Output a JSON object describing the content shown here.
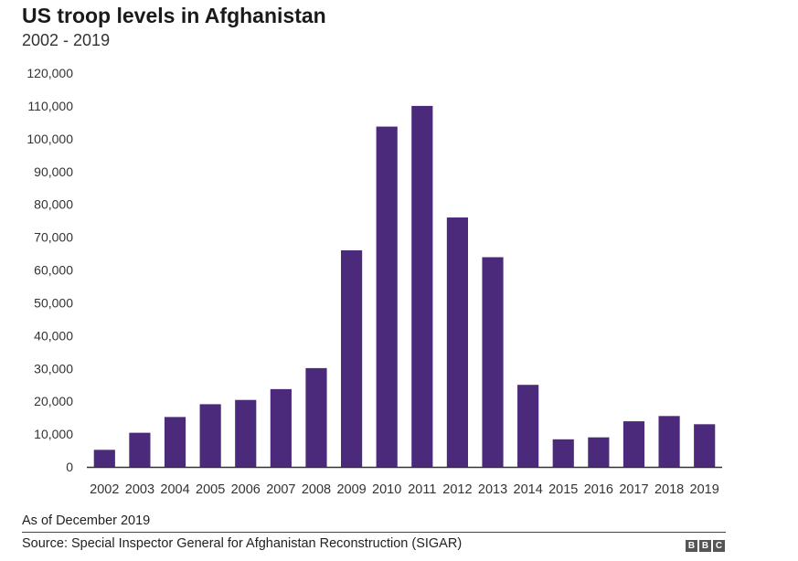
{
  "header": {
    "title": "US troop levels in Afghanistan",
    "subtitle": "2002 - 2019"
  },
  "footer": {
    "note": "As of December 2019",
    "source": "Source: Special Inspector General for Afghanistan Reconstruction (SIGAR)",
    "logo": [
      "B",
      "B",
      "C"
    ]
  },
  "colors": {
    "bar": "#4b2a7b",
    "axis": "#333333"
  },
  "chart_data": {
    "type": "bar",
    "title": "US troop levels in Afghanistan",
    "subtitle": "2002 - 2019",
    "categories": [
      "2002",
      "2003",
      "2004",
      "2005",
      "2006",
      "2007",
      "2008",
      "2009",
      "2010",
      "2011",
      "2012",
      "2013",
      "2014",
      "2015",
      "2016",
      "2017",
      "2018",
      "2019"
    ],
    "values": [
      5200,
      10400,
      15200,
      19100,
      20400,
      23700,
      30100,
      66000,
      103700,
      110000,
      76000,
      63900,
      25000,
      8400,
      9000,
      13900,
      15500,
      13000
    ],
    "ylim": [
      0,
      120000
    ],
    "yticks": [
      0,
      10000,
      20000,
      30000,
      40000,
      50000,
      60000,
      70000,
      80000,
      90000,
      100000,
      110000,
      120000
    ],
    "ytick_labels": [
      "0",
      "10,000",
      "20,000",
      "30,000",
      "40,000",
      "50,000",
      "60,000",
      "70,000",
      "80,000",
      "90,000",
      "100,000",
      "110,000",
      "120,000"
    ],
    "xlabel": "",
    "ylabel": "",
    "grid": false,
    "legend": "none"
  }
}
